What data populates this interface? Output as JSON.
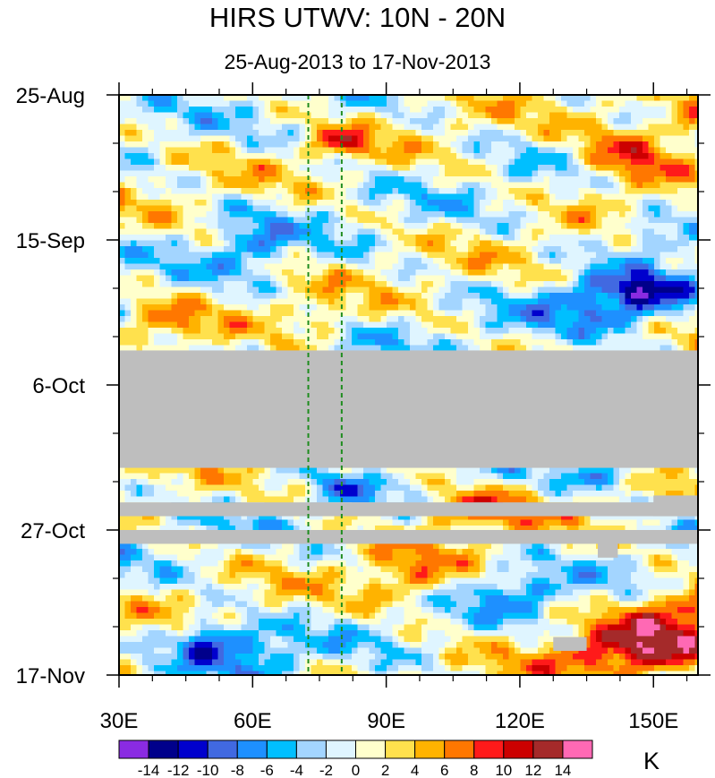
{
  "chart_data": {
    "type": "heatmap",
    "title": "HIRS UTWV: 10N - 20N",
    "subtitle": "25-Aug-2013 to 17-Nov-2013",
    "x_range": [
      30,
      160
    ],
    "x_ticks": [
      {
        "value": 30,
        "label": "30E"
      },
      {
        "value": 60,
        "label": "60E"
      },
      {
        "value": 90,
        "label": "90E"
      },
      {
        "value": 120,
        "label": "120E"
      },
      {
        "value": 150,
        "label": "150E"
      }
    ],
    "y_range_days": [
      0,
      84
    ],
    "y_ticks": [
      {
        "day": 0,
        "label": "25-Aug"
      },
      {
        "day": 21,
        "label": "15-Sep"
      },
      {
        "day": 42,
        "label": "6-Oct"
      },
      {
        "day": 63,
        "label": "27-Oct"
      },
      {
        "day": 84,
        "label": "17-Nov"
      }
    ],
    "reference_lines_lon": [
      72.5,
      80
    ],
    "reference_line_color": "#1e8c1e",
    "missing_color": "#bebebe",
    "missing_bands_days": [
      [
        37,
        54
      ],
      [
        59,
        61
      ],
      [
        63,
        65
      ]
    ],
    "missing_patches": [
      {
        "lon": [
          137.5,
          142
        ],
        "day": [
          64,
          67
        ]
      },
      {
        "lon": [
          127.5,
          135
        ],
        "day": [
          78.5,
          80.5
        ]
      },
      {
        "lon": [
          150,
          160
        ],
        "day": [
          58,
          61
        ]
      }
    ],
    "colorbar": {
      "unit": "K",
      "levels": [
        -14,
        -12,
        -10,
        -8,
        -6,
        -4,
        -2,
        0,
        2,
        4,
        6,
        8,
        10,
        12,
        14
      ],
      "level_labels": [
        "-14",
        "-12",
        "-10",
        "-8",
        "-6",
        "-4",
        "-2",
        "0",
        "2",
        "4",
        "6",
        "8",
        "10",
        "12",
        "14"
      ],
      "colors": [
        "#8a2be2",
        "#00008b",
        "#0000cd",
        "#4169e1",
        "#1e90ff",
        "#00bfff",
        "#a3d5ff",
        "#dff5ff",
        "#ffffcc",
        "#ffe14d",
        "#ffb300",
        "#ff7700",
        "#ff1a1a",
        "#cc0000",
        "#a52a2a",
        "#ff69b4"
      ]
    }
  }
}
